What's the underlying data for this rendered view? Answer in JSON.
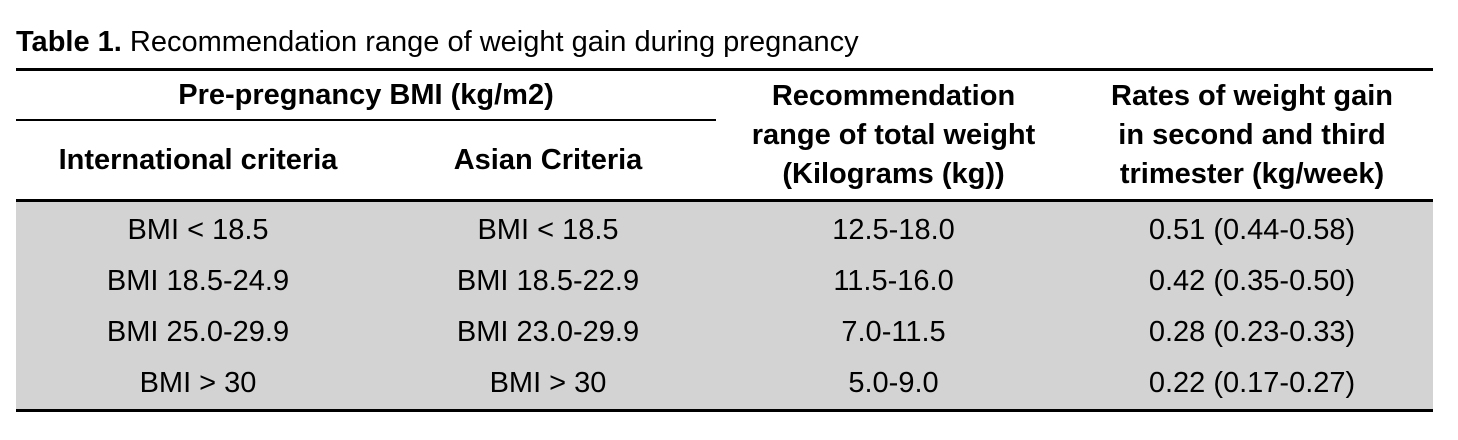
{
  "caption": {
    "label": "Table 1.",
    "text": " Recommendation range of weight gain during pregnancy"
  },
  "header": {
    "bmi_group": "Pre-pregnancy BMI (kg/m2)",
    "international": "International criteria",
    "asian": "Asian Criteria",
    "recommendation_lines": [
      "Recommendation",
      "range of total weight",
      "(Kilograms (kg))"
    ],
    "rates_lines": [
      "Rates of weight gain",
      "in second and third",
      "trimester (kg/week)"
    ]
  },
  "rows": [
    {
      "international": "BMI < 18.5",
      "asian": "BMI < 18.5",
      "total": "12.5-18.0",
      "rate": "0.51 (0.44-0.58)"
    },
    {
      "international": "BMI 18.5-24.9",
      "asian": "BMI 18.5-22.9",
      "total": "11.5-16.0",
      "rate": "0.42 (0.35-0.50)"
    },
    {
      "international": "BMI 25.0-29.9",
      "asian": "BMI 23.0-29.9",
      "total": "7.0-11.5",
      "rate": "0.28 (0.23-0.33)"
    },
    {
      "international": "BMI > 30",
      "asian": "BMI > 30",
      "total": "5.0-9.0",
      "rate": "0.22 (0.17-0.27)"
    }
  ],
  "colors": {
    "row_background": "#d3d3d3",
    "rule": "#000000"
  }
}
